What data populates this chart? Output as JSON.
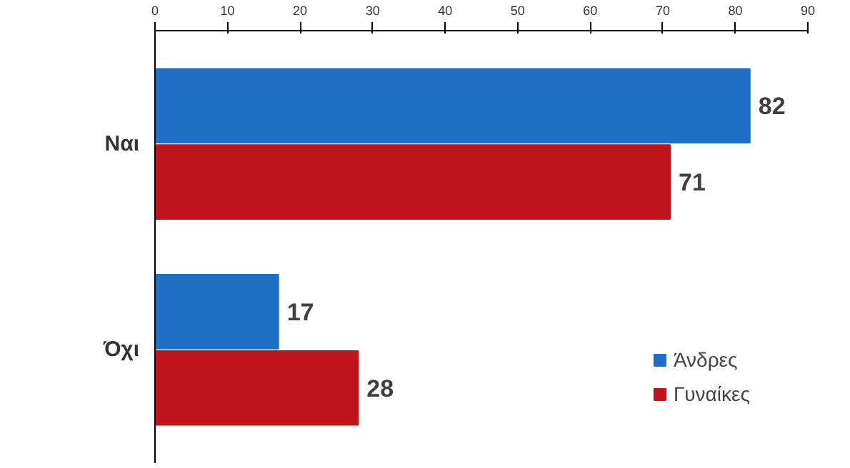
{
  "chart_data": {
    "type": "bar",
    "orientation": "horizontal",
    "categories": [
      "Ναι",
      "Όχι"
    ],
    "series": [
      {
        "name": "Άνδρες",
        "color": "#1f6fc6",
        "values": [
          82,
          17
        ]
      },
      {
        "name": "Γυναίκες",
        "color": "#c0141c",
        "values": [
          71,
          28
        ]
      }
    ],
    "xlim": [
      0,
      90
    ],
    "xticks": [
      0,
      10,
      20,
      30,
      40,
      50,
      60,
      70,
      80,
      90
    ],
    "data_labels": true,
    "legend": "bottom right",
    "grid": false
  }
}
